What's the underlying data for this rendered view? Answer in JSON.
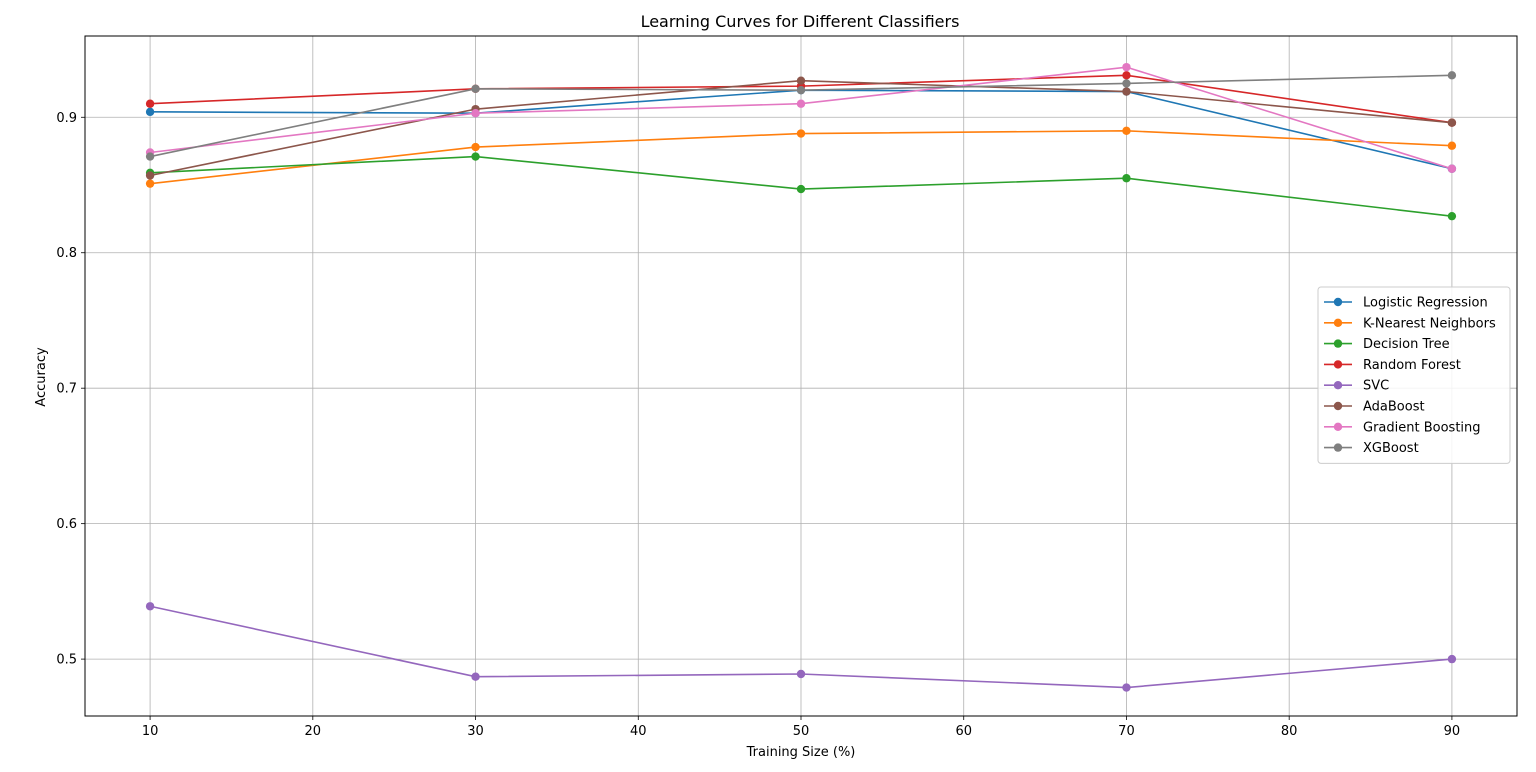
{
  "chart_data": {
    "type": "line",
    "title": "Learning Curves for Different Classifiers",
    "xlabel": "Training Size (%)",
    "ylabel": "Accuracy",
    "x": [
      10,
      30,
      50,
      70,
      90
    ],
    "xlim": [
      6,
      94
    ],
    "ylim": [
      0.458,
      0.96
    ],
    "xticks": [
      10,
      20,
      30,
      40,
      50,
      60,
      70,
      80,
      90
    ],
    "yticks": [
      0.5,
      0.6,
      0.7,
      0.8,
      0.9
    ],
    "grid": true,
    "legend_position": "center-right",
    "series": [
      {
        "name": "Logistic Regression",
        "color": "#1f77b4",
        "values": [
          0.904,
          0.903,
          0.92,
          0.919,
          0.862
        ]
      },
      {
        "name": "K-Nearest Neighbors",
        "color": "#ff7f0e",
        "values": [
          0.851,
          0.878,
          0.888,
          0.89,
          0.879
        ]
      },
      {
        "name": "Decision Tree",
        "color": "#2ca02c",
        "values": [
          0.859,
          0.871,
          0.847,
          0.855,
          0.827
        ]
      },
      {
        "name": "Random Forest",
        "color": "#d62728",
        "values": [
          0.91,
          0.921,
          0.923,
          0.931,
          0.896
        ]
      },
      {
        "name": "SVC",
        "color": "#9467bd",
        "values": [
          0.539,
          0.487,
          0.489,
          0.479,
          0.5
        ]
      },
      {
        "name": "AdaBoost",
        "color": "#8c564b",
        "values": [
          0.857,
          0.906,
          0.927,
          0.919,
          0.896
        ]
      },
      {
        "name": "Gradient Boosting",
        "color": "#e377c2",
        "values": [
          0.874,
          0.903,
          0.91,
          0.937,
          0.862
        ]
      },
      {
        "name": "XGBoost",
        "color": "#7f7f7f",
        "values": [
          0.871,
          0.921,
          0.92,
          0.925,
          0.931
        ]
      }
    ]
  }
}
